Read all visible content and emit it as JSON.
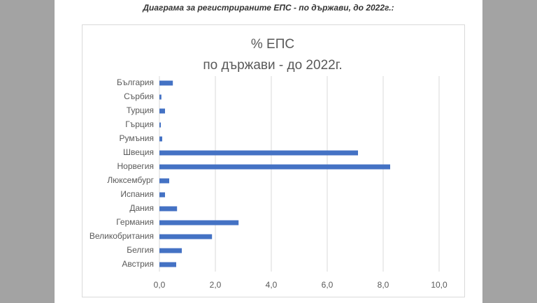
{
  "header": {
    "title": "Диаграма за регистрираните ЕПС - по държави, до 2022г.:"
  },
  "chart_data": {
    "type": "bar",
    "orientation": "horizontal",
    "title": "% ЕПС",
    "subtitle": "по държави - до 2022г.",
    "categories": [
      "България",
      "Сърбия",
      "Турция",
      "Гърция",
      "Румъния",
      "Швеция",
      "Норвегия",
      "Люксембург",
      "Испания",
      "Дания",
      "Германия",
      "Великобритания",
      "Белгия",
      "Австрия"
    ],
    "values": [
      0.48,
      0.07,
      0.2,
      0.05,
      0.1,
      7.1,
      8.25,
      0.35,
      0.2,
      0.63,
      2.83,
      1.88,
      0.8,
      0.6
    ],
    "color": "#4472c4",
    "xlim": [
      0,
      10
    ],
    "xticks": [
      {
        "value": 0,
        "label": "0,0"
      },
      {
        "value": 2,
        "label": "2,0"
      },
      {
        "value": 4,
        "label": "4,0"
      },
      {
        "value": 6,
        "label": "6,0"
      },
      {
        "value": 8,
        "label": "8,0"
      },
      {
        "value": 10,
        "label": "10,0"
      }
    ],
    "grid": true
  }
}
